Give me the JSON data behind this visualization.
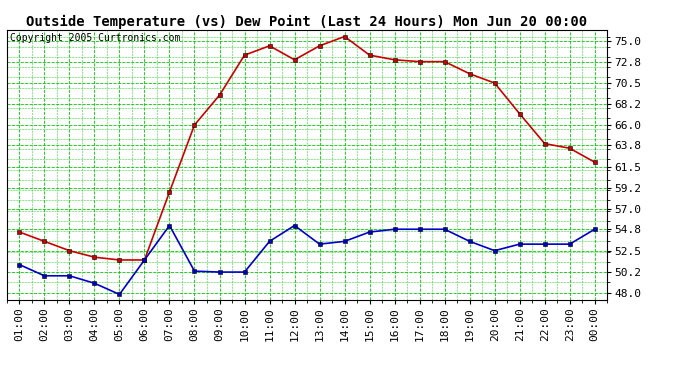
{
  "title": "Outside Temperature (vs) Dew Point (Last 24 Hours) Mon Jun 20 00:00",
  "copyright": "Copyright 2005 Curtronics.com",
  "x_labels": [
    "01:00",
    "02:00",
    "03:00",
    "04:00",
    "05:00",
    "06:00",
    "07:00",
    "08:00",
    "09:00",
    "10:00",
    "11:00",
    "12:00",
    "13:00",
    "14:00",
    "15:00",
    "16:00",
    "17:00",
    "18:00",
    "19:00",
    "20:00",
    "21:00",
    "22:00",
    "23:00",
    "00:00"
  ],
  "temp_values": [
    54.5,
    53.5,
    52.5,
    51.8,
    51.5,
    51.5,
    58.8,
    66.0,
    69.2,
    73.5,
    74.5,
    73.0,
    74.5,
    75.5,
    73.5,
    73.0,
    72.8,
    72.8,
    71.5,
    70.5,
    67.2,
    64.0,
    63.5,
    62.0
  ],
  "dew_values": [
    51.0,
    49.8,
    49.8,
    49.0,
    47.8,
    51.5,
    55.2,
    50.3,
    50.2,
    50.2,
    53.5,
    55.2,
    53.2,
    53.5,
    54.5,
    54.8,
    54.8,
    54.8,
    53.5,
    52.5,
    53.2,
    53.2,
    53.2,
    54.8
  ],
  "temp_color": "#cc0000",
  "dew_color": "#0000cc",
  "bg_color": "#ffffff",
  "plot_bg_color": "#ffffff",
  "grid_color": "#00cc00",
  "yticks": [
    48.0,
    50.2,
    52.5,
    54.8,
    57.0,
    59.2,
    61.5,
    63.8,
    66.0,
    68.2,
    70.5,
    72.8,
    75.0
  ],
  "ylim": [
    47.2,
    76.2
  ],
  "title_fontsize": 10,
  "tick_fontsize": 8,
  "copyright_fontsize": 7,
  "marker": "s",
  "marker_size": 3,
  "line_width": 1.2
}
